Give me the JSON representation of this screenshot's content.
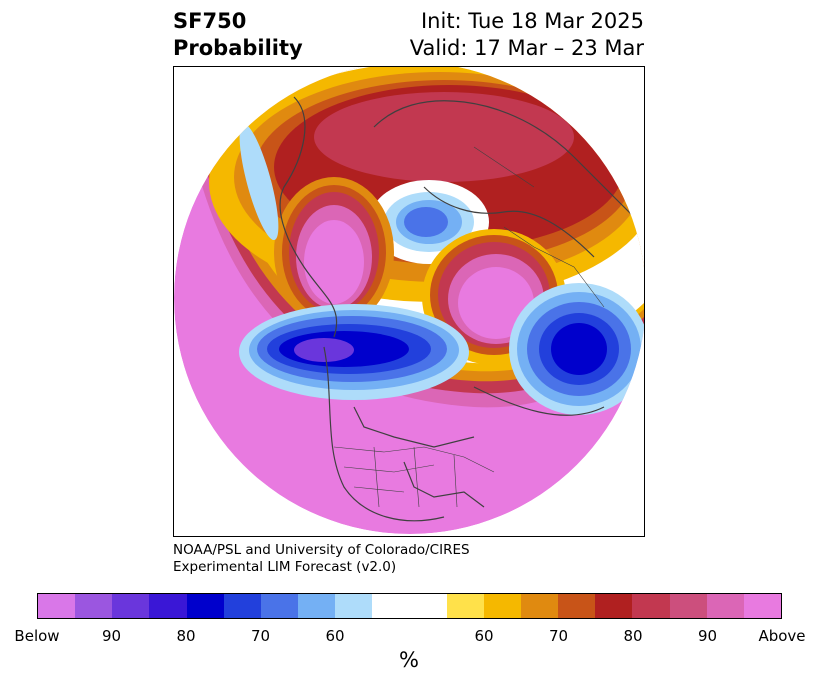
{
  "header": {
    "variable": "SF750",
    "product": "Probability",
    "init": "Init: Tue 18 Mar 2025",
    "valid": "Valid: 17 Mar – 23 Mar"
  },
  "credit": {
    "line1": "NOAA/PSL and University of Colorado/CIRES",
    "line2": "Experimental LIM Forecast (v2.0)"
  },
  "colorbar": {
    "below_colors": [
      "#d977e8",
      "#9b56e0",
      "#6a36dc",
      "#3a17d6",
      "#0000cc",
      "#2240dc",
      "#4a73e8",
      "#74b0f4",
      "#aedcfa"
    ],
    "neutral_color": "#ffffff",
    "above_colors": [
      "#ffe14a",
      "#f5b800",
      "#e08a10",
      "#c85418",
      "#b02020",
      "#c23850",
      "#cc4f7d",
      "#db66b6",
      "#e87ae0"
    ],
    "tick_labels": [
      "Below",
      "90",
      "80",
      "70",
      "60",
      "60",
      "70",
      "80",
      "90",
      "Above"
    ],
    "unit": "%"
  },
  "map": {
    "projection": "north-polar-stereographic",
    "continent_line_color": "#404040"
  }
}
